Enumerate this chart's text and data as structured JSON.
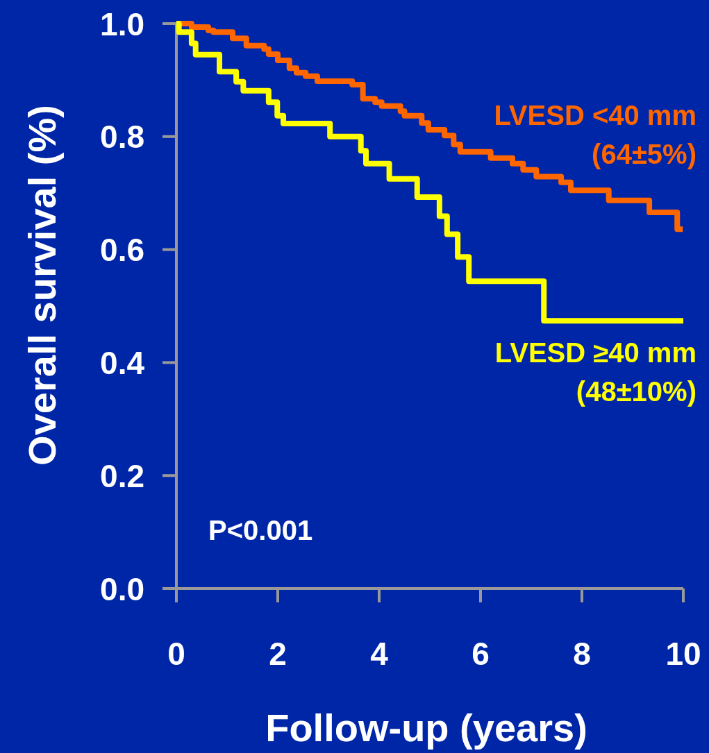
{
  "chart_data": {
    "type": "step",
    "xlabel": "Follow-up (years)",
    "ylabel": "Overall survival (%)",
    "xlim": [
      0,
      10
    ],
    "xticks": [
      0,
      2,
      4,
      6,
      8,
      10
    ],
    "ylim": [
      0,
      1
    ],
    "yticks": [
      {
        "value": 0,
        "label": "0.0"
      },
      0.2,
      0.4,
      0.6,
      0.8,
      {
        "value": 1,
        "label": "1.0"
      }
    ],
    "series": [
      {
        "name": "LVESD <40 mm",
        "color": "#ff6600",
        "x": [
          0,
          0.3,
          0.63,
          0.73,
          1.11,
          1.38,
          1.73,
          1.82,
          2.0,
          2.23,
          2.37,
          2.55,
          2.78,
          3.47,
          3.68,
          3.92,
          4.05,
          4.42,
          4.5,
          4.84,
          4.97,
          5.29,
          5.47,
          5.6,
          6.2,
          6.63,
          6.84,
          7.1,
          7.59,
          7.78,
          8.53,
          9.33,
          9.88,
          9.99
        ],
        "values": [
          1.0,
          0.994,
          0.988,
          0.985,
          0.974,
          0.961,
          0.955,
          0.946,
          0.935,
          0.921,
          0.913,
          0.907,
          0.898,
          0.892,
          0.867,
          0.861,
          0.854,
          0.845,
          0.837,
          0.824,
          0.812,
          0.802,
          0.786,
          0.773,
          0.762,
          0.752,
          0.741,
          0.729,
          0.719,
          0.705,
          0.687,
          0.666,
          0.636,
          0.636
        ]
      },
      {
        "name": "LVESD ≥40 mm",
        "color": "#ffff00",
        "x": [
          0,
          0.05,
          0.3,
          0.38,
          0.85,
          1.18,
          1.32,
          1.82,
          1.99,
          2.11,
          3.03,
          3.64,
          3.74,
          4.2,
          4.75,
          5.19,
          5.34,
          5.55,
          5.77,
          7.25,
          10.0
        ],
        "values": [
          1.0,
          0.985,
          0.965,
          0.945,
          0.915,
          0.897,
          0.881,
          0.861,
          0.837,
          0.823,
          0.8,
          0.775,
          0.752,
          0.725,
          0.693,
          0.659,
          0.627,
          0.587,
          0.544,
          0.474,
          0.474
        ]
      }
    ],
    "annotations": [
      "(64±5%)",
      "(48±10%)",
      "P<0.001"
    ]
  }
}
